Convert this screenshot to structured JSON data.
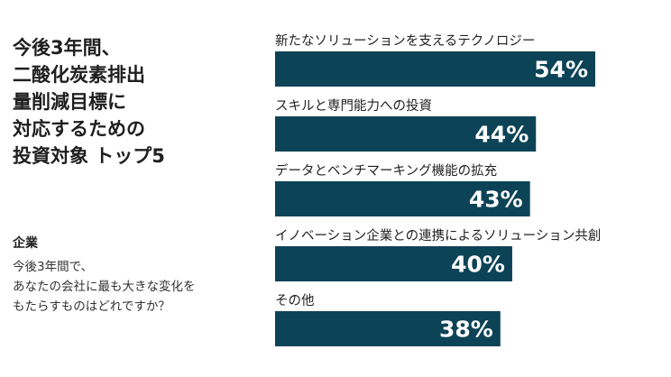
{
  "heading": {
    "title_lines": [
      "今後3年間、",
      "二酸化炭素排出",
      "量削減目標に",
      "対応するための",
      "投資対象 トップ5"
    ],
    "segment": "企業",
    "question_lines": [
      "今後3年間で、",
      "あなたの会社に最も大きな変化を",
      "もたらすものはどれですか？"
    ]
  },
  "colors": {
    "bar": "#0d4356",
    "value_text": "#ffffff"
  },
  "chart_data": {
    "type": "bar",
    "orientation": "horizontal",
    "categories": [
      "新たなソリューションを支えるテクノロジー",
      "スキルと専門能力への投資",
      "データとベンチマーキング機能の拡充",
      "イノベーション企業との連携によるソリューション共創",
      "その他"
    ],
    "values": [
      54,
      44,
      43,
      40,
      38
    ],
    "value_labels": [
      "54%",
      "44%",
      "43%",
      "40%",
      "38%"
    ],
    "unit": "%",
    "xlim": [
      0,
      54
    ],
    "grid": false,
    "legend": "none"
  }
}
